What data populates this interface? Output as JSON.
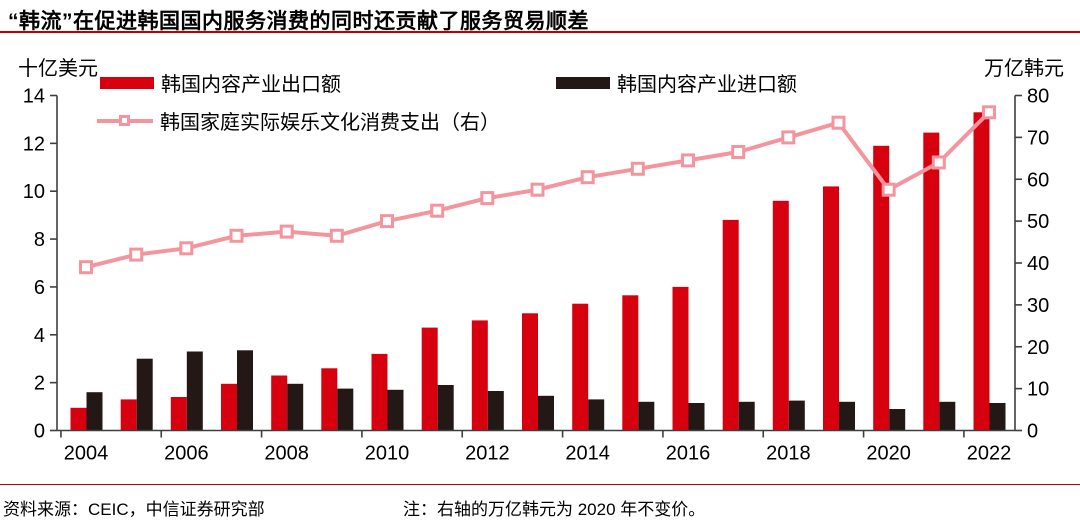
{
  "title": "“韩流”在促进韩国国内服务消费的同时还贡献了服务贸易顺差",
  "footer": {
    "source": "资料来源：CEIC，中信证券研究部",
    "note": "注：右轴的万亿韩元为 2020 年不变价。"
  },
  "colors": {
    "export_bar": "#d7000f",
    "import_bar": "#231815",
    "line": "#f4959e",
    "marker_fill": "#ffffff",
    "rule_red": "#c00000",
    "axis": "#3f3f3f",
    "text": "#000000"
  },
  "legend": {
    "items": [
      {
        "label": "韩国内容产业出口额",
        "type": "bar",
        "color": "#d7000f"
      },
      {
        "label": "韩国内容产业进口额",
        "type": "bar",
        "color": "#231815"
      },
      {
        "label": "韩国家庭实际娱乐文化消费支出（右）",
        "type": "line",
        "color": "#f4959e"
      }
    ]
  },
  "chart_data": {
    "type": "bar",
    "subtype": "grouped-bars-with-line",
    "title": "“韩流”在促进韩国国内服务消费的同时还贡献了服务贸易顺差",
    "categories": [
      "2004",
      "2005",
      "2006",
      "2007",
      "2008",
      "2009",
      "2010",
      "2011",
      "2012",
      "2013",
      "2014",
      "2015",
      "2016",
      "2017",
      "2018",
      "2019",
      "2020",
      "2021",
      "2022"
    ],
    "x_tick_labels": [
      "2004",
      "2006",
      "2008",
      "2010",
      "2012",
      "2014",
      "2016",
      "2018",
      "2020",
      "2022"
    ],
    "label_every": 2,
    "series": [
      {
        "name": "韩国内容产业出口额",
        "type": "bar",
        "axis": "left",
        "color": "#d7000f",
        "values": [
          0.95,
          1.3,
          1.4,
          1.95,
          2.3,
          2.6,
          3.2,
          4.3,
          4.6,
          4.9,
          5.3,
          5.65,
          6.0,
          8.8,
          9.6,
          10.2,
          11.9,
          12.45,
          13.3
        ]
      },
      {
        "name": "韩国内容产业进口额",
        "type": "bar",
        "axis": "left",
        "color": "#231815",
        "values": [
          1.6,
          3.0,
          3.3,
          3.35,
          1.95,
          1.75,
          1.7,
          1.9,
          1.65,
          1.45,
          1.3,
          1.2,
          1.15,
          1.2,
          1.25,
          1.2,
          0.9,
          1.2,
          1.15
        ]
      },
      {
        "name": "韩国家庭实际娱乐文化消费支出（右）",
        "type": "line",
        "axis": "right",
        "color": "#f4959e",
        "values": [
          39,
          42,
          43.5,
          46.5,
          47.5,
          46.5,
          50,
          52.5,
          55.5,
          57.5,
          60.5,
          62.5,
          64.5,
          66.5,
          70,
          73.5,
          57.5,
          64,
          76
        ]
      }
    ],
    "left_axis": {
      "label": "十亿美元",
      "min": 0,
      "max": 14,
      "step": 2,
      "tick_labels": [
        "0",
        "2",
        "4",
        "6",
        "8",
        "10",
        "12",
        "14"
      ]
    },
    "right_axis": {
      "label": "万亿韩元",
      "min": 0,
      "max": 80,
      "step": 10,
      "tick_labels": [
        "0",
        "10",
        "20",
        "30",
        "40",
        "50",
        "60",
        "70",
        "80"
      ]
    },
    "grid": false,
    "legend_position": "top"
  }
}
